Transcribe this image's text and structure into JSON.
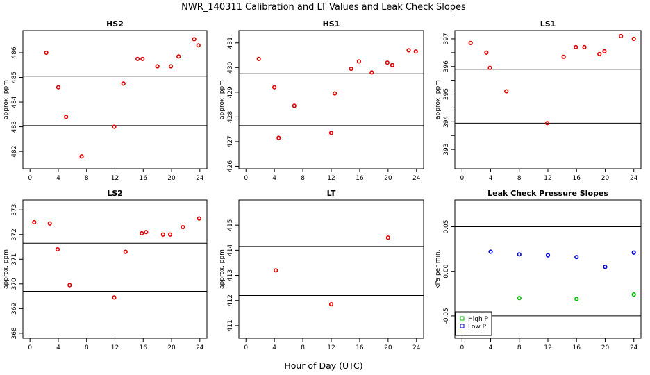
{
  "figure": {
    "title": "NWR_140311  Calibration and LT Values and Leak Check Slopes",
    "xlabel": "Hour of Day (UTC)"
  },
  "chart_data": [
    {
      "type": "scatter",
      "title": "HS2",
      "ylabel": "approx. ppm",
      "xlim": [
        -1.0,
        25.0
      ],
      "ylim": [
        481.3,
        486.9
      ],
      "xticks": [
        0,
        4,
        8,
        12,
        16,
        20,
        24
      ],
      "yticks": [
        482,
        483,
        484,
        485,
        486
      ],
      "hlines": [
        483.05,
        485.05
      ],
      "series": [
        {
          "color": "#e00000",
          "marker": "circle",
          "x": [
            2.3,
            4.0,
            5.1,
            7.3,
            11.9,
            13.2,
            15.2,
            15.9,
            18.0,
            19.9,
            21.0,
            23.2,
            23.8
          ],
          "y": [
            486.0,
            484.6,
            483.4,
            481.8,
            483.0,
            484.75,
            485.75,
            485.75,
            485.45,
            485.45,
            485.85,
            486.55,
            486.3
          ]
        }
      ]
    },
    {
      "type": "scatter",
      "title": "HS1",
      "ylabel": "approx. ppm",
      "xlim": [
        -1.0,
        25.0
      ],
      "ylim": [
        425.9,
        431.5
      ],
      "xticks": [
        0,
        4,
        8,
        12,
        16,
        20,
        24
      ],
      "yticks": [
        426,
        427,
        428,
        429,
        430,
        431
      ],
      "hlines": [
        427.65,
        429.75
      ],
      "series": [
        {
          "color": "#e00000",
          "marker": "circle",
          "x": [
            1.8,
            4.0,
            4.6,
            6.8,
            12.0,
            12.5,
            14.8,
            15.9,
            17.7,
            19.9,
            20.6,
            22.9,
            23.9
          ],
          "y": [
            430.35,
            429.2,
            427.15,
            428.45,
            427.35,
            428.95,
            429.95,
            430.25,
            429.8,
            430.2,
            430.1,
            430.7,
            430.65
          ]
        }
      ]
    },
    {
      "type": "scatter",
      "title": "LS1",
      "ylabel": "approx. ppm",
      "xlim": [
        -1.0,
        25.0
      ],
      "ylim": [
        392.3,
        397.3
      ],
      "xticks": [
        0,
        4,
        8,
        12,
        16,
        20,
        24
      ],
      "yticks": [
        393,
        393.5,
        394,
        394.5,
        395,
        395.5,
        396,
        396.5,
        397
      ],
      "ytick_labels": [
        "393",
        "",
        "394",
        "",
        "395",
        "",
        "396",
        "",
        "397"
      ],
      "hlines": [
        393.95,
        395.9
      ],
      "series": [
        {
          "color": "#e00000",
          "marker": "circle",
          "x": [
            1.2,
            3.4,
            3.9,
            6.2,
            11.9,
            14.2,
            15.9,
            17.1,
            19.2,
            19.9,
            22.2,
            24.0
          ],
          "y": [
            396.85,
            396.5,
            395.95,
            395.1,
            393.95,
            396.35,
            396.7,
            396.7,
            396.45,
            396.55,
            397.1,
            397.0
          ]
        }
      ]
    },
    {
      "type": "scatter",
      "title": "LS2",
      "ylabel": "approx. ppm",
      "xlim": [
        -1.0,
        25.0
      ],
      "ylim": [
        367.8,
        373.4
      ],
      "xticks": [
        0,
        4,
        8,
        12,
        16,
        20,
        24
      ],
      "yticks": [
        368,
        369,
        370,
        371,
        372,
        373
      ],
      "hlines": [
        369.7,
        371.65
      ],
      "series": [
        {
          "color": "#e00000",
          "marker": "circle",
          "x": [
            0.6,
            2.8,
            3.9,
            5.6,
            11.9,
            13.5,
            15.8,
            16.4,
            18.8,
            19.8,
            21.6,
            23.9
          ],
          "y": [
            372.5,
            372.45,
            371.4,
            369.95,
            369.45,
            371.3,
            372.05,
            372.1,
            372.0,
            372.0,
            372.3,
            372.65
          ]
        }
      ]
    },
    {
      "type": "scatter",
      "title": "LT",
      "ylabel": "approx. ppm",
      "xlim": [
        -1.0,
        25.0
      ],
      "ylim": [
        410.5,
        416.0
      ],
      "xticks": [
        0,
        4,
        8,
        12,
        16,
        20,
        24
      ],
      "yticks": [
        411,
        412,
        413,
        414,
        415
      ],
      "hlines": [
        412.2,
        414.15
      ],
      "series": [
        {
          "color": "#e00000",
          "marker": "circle",
          "x": [
            4.2,
            12.0,
            20.0
          ],
          "y": [
            413.2,
            411.85,
            414.5
          ]
        }
      ]
    },
    {
      "type": "scatter",
      "title": "Leak Check Pressure Slopes",
      "ylabel": "kPa per min.",
      "xlim": [
        -1.0,
        25.0
      ],
      "ylim": [
        -0.075,
        0.08
      ],
      "xticks": [
        0,
        4,
        8,
        12,
        16,
        20,
        24
      ],
      "yticks": [
        -0.05,
        0.0,
        0.05
      ],
      "ytick_labels": [
        "-0.05",
        "0.00",
        "0.05"
      ],
      "hlines": [
        -0.05,
        0.05
      ],
      "legend": "bottom-left",
      "series": [
        {
          "name": "High P",
          "color": "#00c000",
          "marker": "circle",
          "x": [
            8.0,
            16.0,
            24.0
          ],
          "y": [
            -0.03,
            -0.031,
            -0.026
          ]
        },
        {
          "name": "Low P",
          "color": "#0000e0",
          "marker": "circle",
          "x": [
            4.0,
            8.0,
            12.0,
            16.0,
            20.0,
            24.0
          ],
          "y": [
            0.022,
            0.019,
            0.018,
            0.016,
            0.005,
            0.021
          ]
        }
      ]
    }
  ]
}
